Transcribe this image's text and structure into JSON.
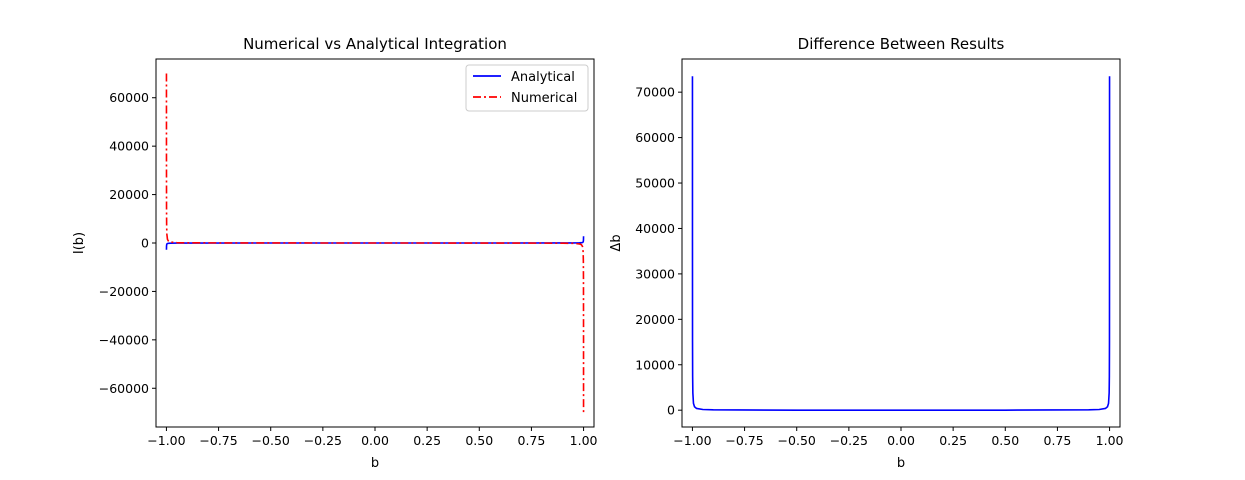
{
  "chart_data": [
    {
      "type": "line",
      "title": "Numerical vs Analytical Integration",
      "xlabel": "b",
      "ylabel": "I(b)",
      "xlim": [
        -1.05,
        1.05
      ],
      "ylim": [
        -76000,
        76000
      ],
      "grid": false,
      "legend": "top-right",
      "xticks": [
        -1.0,
        -0.75,
        -0.5,
        -0.25,
        0.0,
        0.25,
        0.5,
        0.75,
        1.0
      ],
      "xtick_labels": [
        "−1.00",
        "−0.75",
        "−0.50",
        "−0.25",
        "0.00",
        "0.25",
        "0.50",
        "0.75",
        "1.00"
      ],
      "yticks": [
        -60000,
        -40000,
        -20000,
        0,
        20000,
        40000,
        60000
      ],
      "ytick_labels": [
        "−60000",
        "−40000",
        "−20000",
        "0",
        "20000",
        "40000",
        "60000"
      ],
      "series": [
        {
          "name": "Analytical",
          "color": "#0000ff",
          "style": "solid",
          "x": [
            -0.9999,
            -0.9995,
            -0.999,
            -0.998,
            -0.995,
            -0.99,
            -0.98,
            -0.95,
            -0.9,
            -0.5,
            0.0,
            0.5,
            0.9,
            0.95,
            0.98,
            0.99,
            0.995,
            0.998,
            0.999,
            0.9995,
            0.9999
          ],
          "y": [
            -2800,
            -1300,
            -800,
            -450,
            -200,
            -110,
            -60,
            -25,
            -12,
            -2,
            0,
            2,
            12,
            25,
            60,
            110,
            200,
            450,
            800,
            1300,
            2800
          ]
        },
        {
          "name": "Numerical",
          "color": "#ff0000",
          "style": "dashdot",
          "x": [
            -0.9999,
            -0.9998,
            -0.9995,
            -0.999,
            -0.998,
            -0.995,
            -0.99,
            -0.98,
            -0.95,
            -0.9,
            -0.5,
            0.0,
            0.5,
            0.9,
            0.95,
            0.98,
            0.99,
            0.995,
            0.998,
            0.999,
            0.9995,
            0.9998,
            0.9999
          ],
          "y": [
            70000,
            36000,
            15000,
            7400,
            3700,
            1500,
            740,
            370,
            150,
            70,
            8,
            0,
            -8,
            -70,
            -150,
            -370,
            -740,
            -1500,
            -3700,
            -7400,
            -15000,
            -36000,
            -70000
          ]
        }
      ]
    },
    {
      "type": "line",
      "title": "Difference Between Results",
      "xlabel": "b",
      "ylabel": "Δb",
      "xlim": [
        -1.05,
        1.05
      ],
      "ylim": [
        -3700,
        77300
      ],
      "grid": false,
      "xticks": [
        -1.0,
        -0.75,
        -0.5,
        -0.25,
        0.0,
        0.25,
        0.5,
        0.75,
        1.0
      ],
      "xtick_labels": [
        "−1.00",
        "−0.75",
        "−0.50",
        "−0.25",
        "0.00",
        "0.25",
        "0.50",
        "0.75",
        "1.00"
      ],
      "yticks": [
        0,
        10000,
        20000,
        30000,
        40000,
        50000,
        60000,
        70000
      ],
      "ytick_labels": [
        "0",
        "10000",
        "20000",
        "30000",
        "40000",
        "50000",
        "60000",
        "70000"
      ],
      "series": [
        {
          "color": "#0000ff",
          "style": "solid",
          "x": [
            -0.9999,
            -0.9998,
            -0.9995,
            -0.999,
            -0.998,
            -0.995,
            -0.99,
            -0.98,
            -0.95,
            -0.9,
            -0.5,
            0.0,
            0.5,
            0.9,
            0.95,
            0.98,
            0.99,
            0.995,
            0.998,
            0.999,
            0.9995,
            0.9998,
            0.9999
          ],
          "y": [
            73500,
            37000,
            15000,
            7500,
            3800,
            1500,
            750,
            380,
            150,
            75,
            10,
            0,
            10,
            75,
            150,
            380,
            750,
            1500,
            3800,
            7500,
            15000,
            37000,
            73500
          ]
        }
      ]
    }
  ]
}
